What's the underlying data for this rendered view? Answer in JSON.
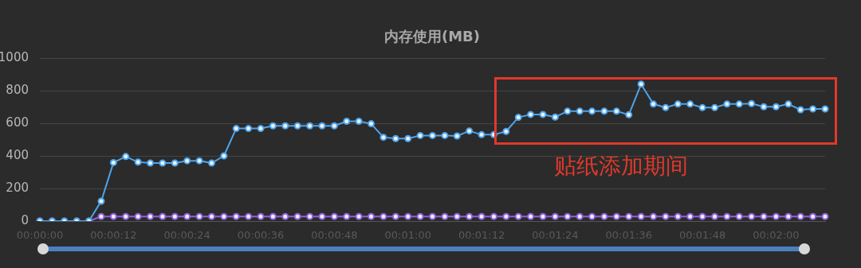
{
  "chart_data": {
    "type": "line",
    "title": "内存使用(MB)",
    "categories": [
      "00:00:00",
      null,
      null,
      null,
      null,
      null,
      "00:00:12",
      null,
      null,
      null,
      null,
      null,
      "00:00:24",
      null,
      null,
      null,
      null,
      null,
      "00:00:36",
      null,
      null,
      null,
      null,
      null,
      "00:00:48",
      null,
      null,
      null,
      null,
      null,
      "00:01:00",
      null,
      null,
      null,
      null,
      null,
      "00:01:12",
      null,
      null,
      null,
      null,
      null,
      "00:01:24",
      null,
      null,
      null,
      null,
      null,
      "00:01:36",
      null,
      null,
      null,
      null,
      null,
      "00:01:48",
      null,
      null,
      null,
      null,
      null,
      "00:02:00",
      null,
      null,
      null,
      null
    ],
    "series": [
      {
        "color": "#4ea4ea",
        "values": [
          0,
          0,
          0,
          0,
          0,
          122,
          359,
          396,
          362,
          356,
          356,
          356,
          370,
          370,
          356,
          400,
          568,
          568,
          568,
          584,
          584,
          584,
          584,
          584,
          584,
          612,
          612,
          597,
          514,
          506,
          506,
          525,
          525,
          525,
          522,
          553,
          530,
          530,
          550,
          636,
          654,
          654,
          638,
          674,
          674,
          674,
          674,
          674,
          652,
          840,
          718,
          696,
          718,
          718,
          696,
          696,
          718,
          718,
          721,
          701,
          701,
          718,
          683,
          688,
          688
        ]
      },
      {
        "color": "#9360dc",
        "values": [
          0,
          0,
          0,
          0,
          0,
          28,
          28,
          28,
          28,
          28,
          28,
          28,
          28,
          28,
          28,
          28,
          28,
          28,
          28,
          28,
          28,
          28,
          28,
          28,
          28,
          28,
          28,
          28,
          28,
          28,
          28,
          28,
          28,
          28,
          28,
          28,
          28,
          28,
          28,
          28,
          28,
          28,
          28,
          28,
          28,
          28,
          28,
          28,
          28,
          28,
          28,
          28,
          28,
          28,
          28,
          28,
          28,
          28,
          28,
          28,
          28,
          28,
          28,
          28,
          28
        ]
      }
    ],
    "ylim": [
      0,
      1000
    ],
    "yticks": [
      0,
      200,
      400,
      600,
      800,
      1000
    ],
    "grid": "y",
    "marker": "circle",
    "line_style": "solid",
    "annotations": [
      "贴纸添加期间"
    ]
  }
}
